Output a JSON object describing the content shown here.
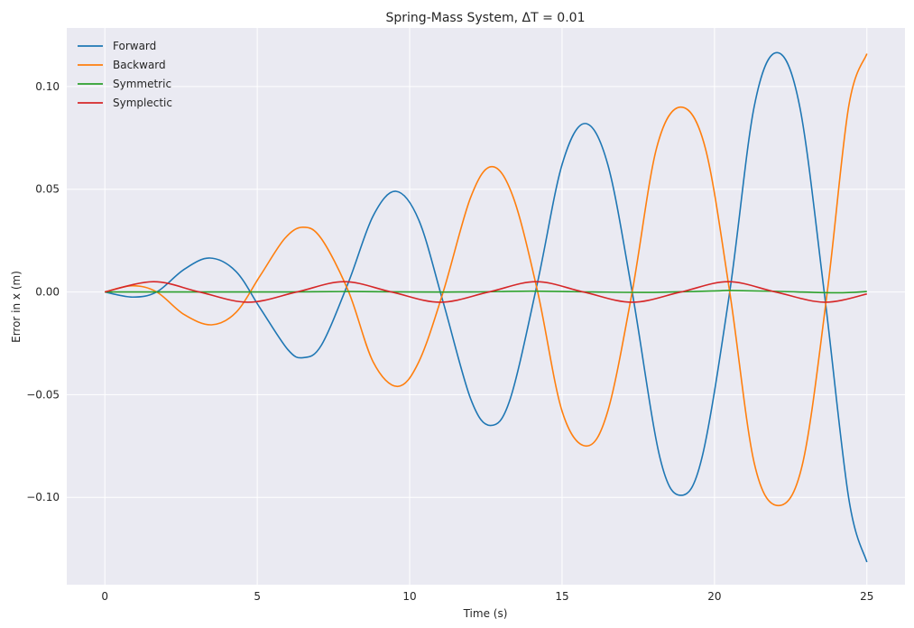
{
  "chart_data": {
    "type": "line",
    "title": "Spring-Mass System, ΔT = 0.01",
    "xlabel": "Time (s)",
    "ylabel": "Error in x (m)",
    "xlim": [
      -1.25,
      26.25
    ],
    "ylim": [
      -0.1425,
      0.1285
    ],
    "xticks": [
      0,
      5,
      10,
      15,
      20,
      25
    ],
    "xtick_labels": [
      "0",
      "5",
      "10",
      "15",
      "20",
      "25"
    ],
    "yticks": [
      -0.1,
      -0.05,
      0.0,
      0.05,
      0.1
    ],
    "ytick_labels": [
      "−0.10",
      "−0.05",
      "0.00",
      "0.05",
      "0.10"
    ],
    "grid": true,
    "legend_position": "top-left",
    "series": [
      {
        "name": "Forward",
        "color": "#1f77b4",
        "x": [
          0,
          0.9,
          1.7,
          2.6,
          3.45,
          4.3,
          5.1,
          6.0,
          6.5,
          7.1,
          8.0,
          8.8,
          9.55,
          10.3,
          11.1,
          12.0,
          12.65,
          13.3,
          14.2,
          15.0,
          15.75,
          16.5,
          17.3,
          18.2,
          18.9,
          19.6,
          20.5,
          21.3,
          22.05,
          22.8,
          23.6,
          24.4,
          25.0
        ],
        "y": [
          0,
          -0.0025,
          0,
          0.011,
          0.0165,
          0.01,
          -0.008,
          -0.028,
          -0.032,
          -0.026,
          0.005,
          0.037,
          0.049,
          0.035,
          -0.005,
          -0.052,
          -0.065,
          -0.052,
          0.005,
          0.062,
          0.082,
          0.062,
          0,
          -0.08,
          -0.099,
          -0.08,
          0,
          0.09,
          0.1165,
          0.09,
          0,
          -0.1,
          -0.1315
        ]
      },
      {
        "name": "Backward",
        "color": "#ff7f0e",
        "x": [
          0,
          0.9,
          1.7,
          2.6,
          3.5,
          4.3,
          5.1,
          5.9,
          6.5,
          7.1,
          8.0,
          8.8,
          9.6,
          10.3,
          11.1,
          12.0,
          12.7,
          13.4,
          14.2,
          15.0,
          15.8,
          16.5,
          17.3,
          18.1,
          18.9,
          19.7,
          20.5,
          21.3,
          22.1,
          22.9,
          23.7,
          24.4,
          25.0
        ],
        "y": [
          0,
          0.003,
          0,
          -0.011,
          -0.016,
          -0.01,
          0.008,
          0.026,
          0.0315,
          0.026,
          0,
          -0.034,
          -0.046,
          -0.034,
          0,
          0.046,
          0.061,
          0.046,
          0,
          -0.058,
          -0.075,
          -0.058,
          0,
          0.07,
          0.09,
          0.07,
          0,
          -0.083,
          -0.104,
          -0.083,
          0,
          0.09,
          0.116
        ]
      },
      {
        "name": "Symmetric",
        "color": "#2ca02c",
        "x": [
          0,
          2,
          4,
          6,
          8,
          10,
          12,
          14,
          16,
          18,
          20,
          20.5,
          22,
          24,
          25
        ],
        "y": [
          0,
          0,
          0,
          0,
          0.0002,
          0,
          0,
          0.0004,
          0,
          -0.0002,
          0.0005,
          0.0007,
          0.0003,
          -0.0004,
          0.0002
        ]
      },
      {
        "name": "Symplectic",
        "color": "#d62728",
        "x": [
          0,
          1.6,
          3.1,
          4.7,
          6.3,
          7.85,
          9.4,
          11.0,
          12.6,
          14.15,
          15.7,
          17.3,
          18.9,
          20.45,
          22.0,
          23.6,
          25.0
        ],
        "y": [
          0,
          0.005,
          0,
          -0.005,
          0,
          0.005,
          0,
          -0.005,
          0,
          0.005,
          0,
          -0.005,
          0,
          0.005,
          0,
          -0.005,
          -0.001
        ]
      }
    ]
  }
}
